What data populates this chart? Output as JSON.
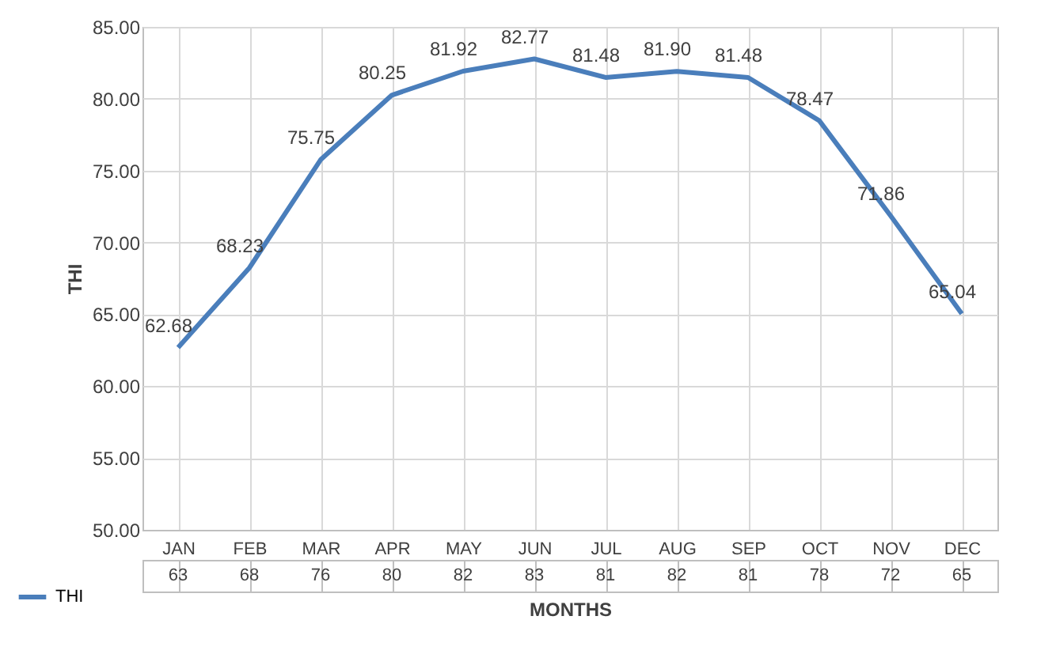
{
  "chart_data": {
    "type": "line",
    "xlabel": "MONTHS",
    "ylabel": "THI",
    "categories": [
      "JAN",
      "FEB",
      "MAR",
      "APR",
      "MAY",
      "JUN",
      "JUL",
      "AUG",
      "SEP",
      "OCT",
      "NOV",
      "DEC"
    ],
    "series": [
      {
        "name": "THI",
        "color": "#4a7ebb",
        "values": [
          62.68,
          68.23,
          75.75,
          80.25,
          81.92,
          82.77,
          81.48,
          81.9,
          81.48,
          78.47,
          71.86,
          65.04
        ]
      }
    ],
    "ylim": [
      50,
      85
    ],
    "yticks": [
      {
        "value": 50,
        "label": "50.00"
      },
      {
        "value": 55,
        "label": "55.00"
      },
      {
        "value": 60,
        "label": "60.00"
      },
      {
        "value": 65,
        "label": "65.00"
      },
      {
        "value": 70,
        "label": "70.00"
      },
      {
        "value": 75,
        "label": "75.00"
      },
      {
        "value": 80,
        "label": "80.00"
      },
      {
        "value": 85,
        "label": "85.00"
      }
    ],
    "value_labels": [
      "62.68",
      "68.23",
      "75.75",
      "80.25",
      "81.92",
      "82.77",
      "81.48",
      "81.90",
      "81.48",
      "78.47",
      "71.86",
      "65.04"
    ],
    "annotations": [
      {
        "text": "63",
        "x": "JAN"
      },
      {
        "text": "68",
        "x": "FEB"
      },
      {
        "text": "76",
        "x": "MAR"
      },
      {
        "text": "80",
        "x": "APR"
      },
      {
        "text": "82",
        "x": "MAY"
      },
      {
        "text": "83",
        "x": "JUN"
      },
      {
        "text": "81",
        "x": "JUL"
      },
      {
        "text": "82",
        "x": "AUG"
      },
      {
        "text": "81",
        "x": "SEP"
      },
      {
        "text": "78",
        "x": "OCT"
      },
      {
        "text": "72",
        "x": "NOV"
      },
      {
        "text": "65",
        "x": "DEC"
      }
    ],
    "grid": true,
    "legend": "bottom left",
    "marker": "none",
    "line_style": "solid"
  }
}
